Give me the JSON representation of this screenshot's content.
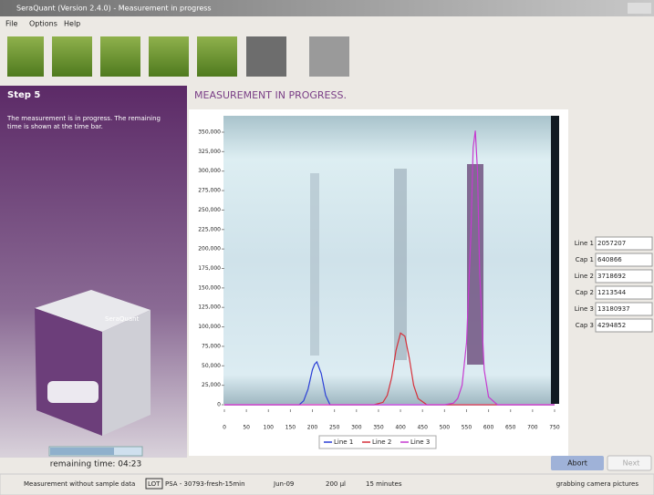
{
  "window": {
    "title": "SeraQuant (Version 2.4.0) - Measurement in progress"
  },
  "menu": [
    "File",
    "Options",
    "Help"
  ],
  "step": {
    "title": "Step 5",
    "description": [
      "The measurement is in progress. The remaining",
      "time is shown at the time bar."
    ],
    "device_label": "SeraQuant",
    "remaining": "remaining time: 04:23"
  },
  "heading": "MEASUREMENT IN PROGRESS.",
  "chart": {
    "type": "line",
    "xlim": [
      0,
      750
    ],
    "xticks": [
      0,
      50,
      100,
      150,
      200,
      250,
      300,
      350,
      400,
      450,
      500,
      550,
      600,
      650,
      700,
      750
    ],
    "ylim": [
      0,
      350000
    ],
    "yticks": [
      0,
      {
        "value": 25000,
        "label": "25,000"
      },
      {
        "value": 50000,
        "label": "50,000"
      },
      {
        "value": 75000,
        "label": "75,000"
      },
      {
        "value": 100000,
        "label": "100,000"
      },
      {
        "value": 125000,
        "label": "125,000"
      },
      {
        "value": 150000,
        "label": "150,000"
      },
      {
        "value": 175000,
        "label": "175,000"
      },
      {
        "value": 200000,
        "label": "200,000"
      },
      {
        "value": 225000,
        "label": "225,000"
      },
      {
        "value": 250000,
        "label": "250,000"
      },
      {
        "value": 275000,
        "label": "275,000"
      },
      {
        "value": 300000,
        "label": "300,000"
      },
      {
        "value": 325000,
        "label": "325,000"
      },
      {
        "value": 350000,
        "label": "350,000"
      }
    ],
    "series": [
      {
        "name": "Line 1",
        "color": "#2b3fd6",
        "x": [
          0,
          170,
          180,
          190,
          200,
          205,
          210,
          220,
          230,
          240,
          750
        ],
        "values": [
          0,
          0,
          5000,
          20000,
          45000,
          52000,
          55000,
          40000,
          12000,
          0,
          0
        ]
      },
      {
        "name": "Line 2",
        "color": "#d6303a",
        "x": [
          0,
          340,
          360,
          370,
          380,
          390,
          400,
          410,
          420,
          430,
          440,
          460,
          750
        ],
        "values": [
          0,
          0,
          3000,
          12000,
          35000,
          70000,
          92000,
          88000,
          60000,
          25000,
          8000,
          0,
          0
        ]
      },
      {
        "name": "Line 3",
        "color": "#c63ad0",
        "x": [
          0,
          500,
          520,
          530,
          540,
          550,
          560,
          565,
          570,
          575,
          580,
          590,
          600,
          620,
          750
        ],
        "values": [
          0,
          0,
          2000,
          8000,
          25000,
          80000,
          220000,
          330000,
          352000,
          300000,
          170000,
          45000,
          10000,
          0,
          0
        ]
      }
    ]
  },
  "fields": [
    {
      "label": "Line 1",
      "value": 2057207
    },
    {
      "label": "Cap 1",
      "value": 640866
    },
    {
      "label": "Line 2",
      "value": 3718692
    },
    {
      "label": "Cap 2",
      "value": 1213544
    },
    {
      "label": "Line 3",
      "value": 13180937
    },
    {
      "label": "Cap 3",
      "value": 4294852
    }
  ],
  "buttons": [
    "Abort",
    "Next"
  ],
  "status": {
    "sample": "Measurement without sample data",
    "lot": "LOT",
    "lot_value": "PSA - 30793-fresh-15min",
    "date": "Jun-09",
    "volume": "200 µl",
    "time": "15 minutes",
    "state": "grabbing camera pictures"
  }
}
